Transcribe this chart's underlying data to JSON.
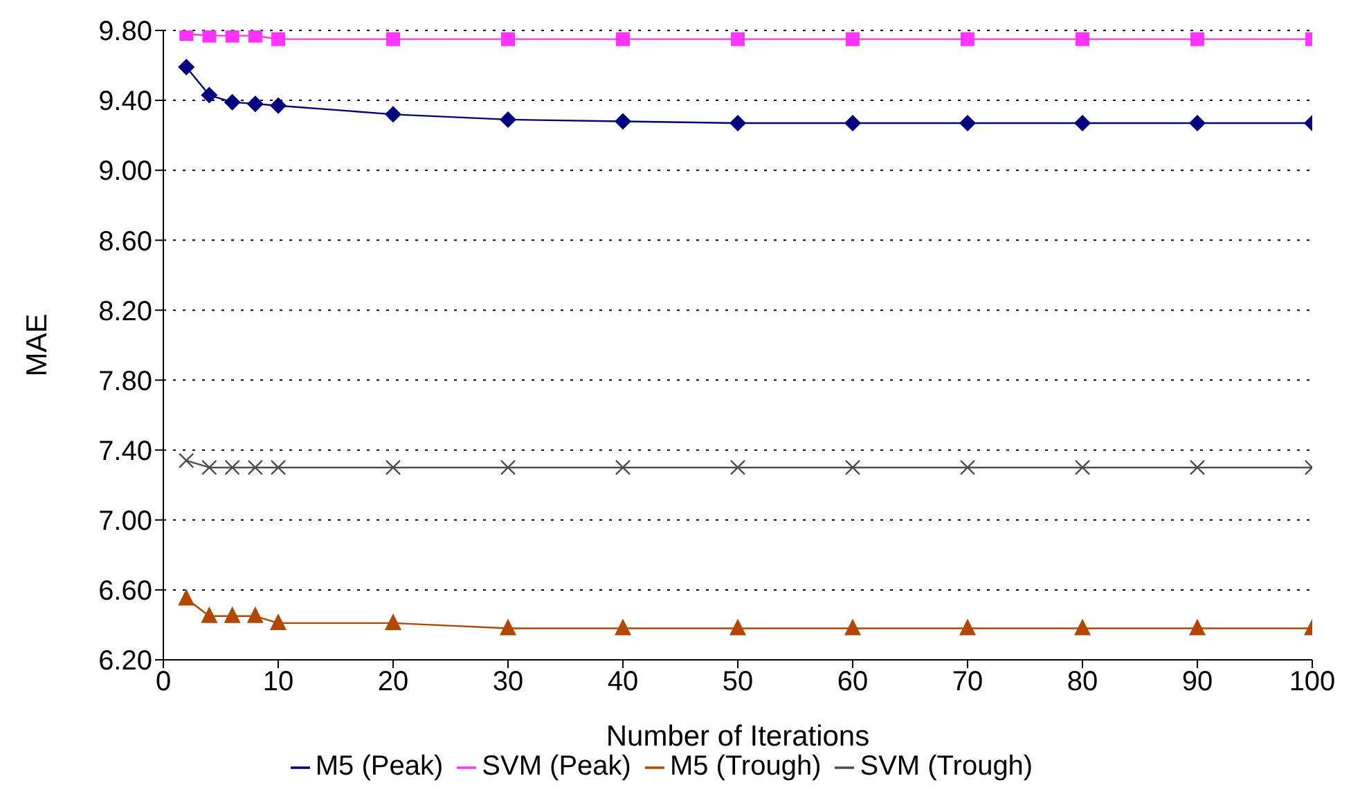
{
  "chart_data": {
    "type": "line",
    "xlabel": "Number of Iterations",
    "ylabel": "MAE",
    "x": [
      2,
      4,
      6,
      8,
      10,
      20,
      30,
      40,
      50,
      60,
      70,
      80,
      90,
      100
    ],
    "series": [
      {
        "name": "M5 (Peak)",
        "color": "#000080",
        "marker": "diamond",
        "values": [
          9.59,
          9.43,
          9.39,
          9.38,
          9.37,
          9.32,
          9.29,
          9.28,
          9.27,
          9.27,
          9.27,
          9.27,
          9.27,
          9.27
        ]
      },
      {
        "name": "SVM (Peak)",
        "color": "#ff33ff",
        "marker": "square",
        "values": [
          9.78,
          9.77,
          9.77,
          9.77,
          9.75,
          9.75,
          9.75,
          9.75,
          9.75,
          9.75,
          9.75,
          9.75,
          9.75,
          9.75
        ]
      },
      {
        "name": "M5 (Trough)",
        "color": "#b34700",
        "marker": "triangle",
        "values": [
          6.55,
          6.45,
          6.45,
          6.45,
          6.41,
          6.41,
          6.38,
          6.38,
          6.38,
          6.38,
          6.38,
          6.38,
          6.38,
          6.38
        ]
      },
      {
        "name": "SVM (Trough)",
        "color": "#4d4d4d",
        "marker": "cross",
        "values": [
          7.34,
          7.3,
          7.3,
          7.3,
          7.3,
          7.3,
          7.3,
          7.3,
          7.3,
          7.3,
          7.3,
          7.3,
          7.3,
          7.3
        ]
      }
    ],
    "xlim": [
      0,
      100
    ],
    "xticks": [
      0,
      10,
      20,
      30,
      40,
      50,
      60,
      70,
      80,
      90,
      100
    ],
    "ylim": [
      6.2,
      9.8
    ],
    "yticks": [
      {
        "value": 6.2,
        "label": "6.20"
      },
      {
        "value": 6.6,
        "label": "6.60"
      },
      {
        "value": 7.0,
        "label": "7.00"
      },
      {
        "value": 7.4,
        "label": "7.40"
      },
      {
        "value": 7.8,
        "label": "7.80"
      },
      {
        "value": 8.2,
        "label": "8.20"
      },
      {
        "value": 8.6,
        "label": "8.60"
      },
      {
        "value": 9.0,
        "label": "9.00"
      },
      {
        "value": 9.4,
        "label": "9.40"
      },
      {
        "value": 9.8,
        "label": "9.80"
      }
    ],
    "grid": "y",
    "legend": "bottom",
    "line_style": "solid"
  }
}
